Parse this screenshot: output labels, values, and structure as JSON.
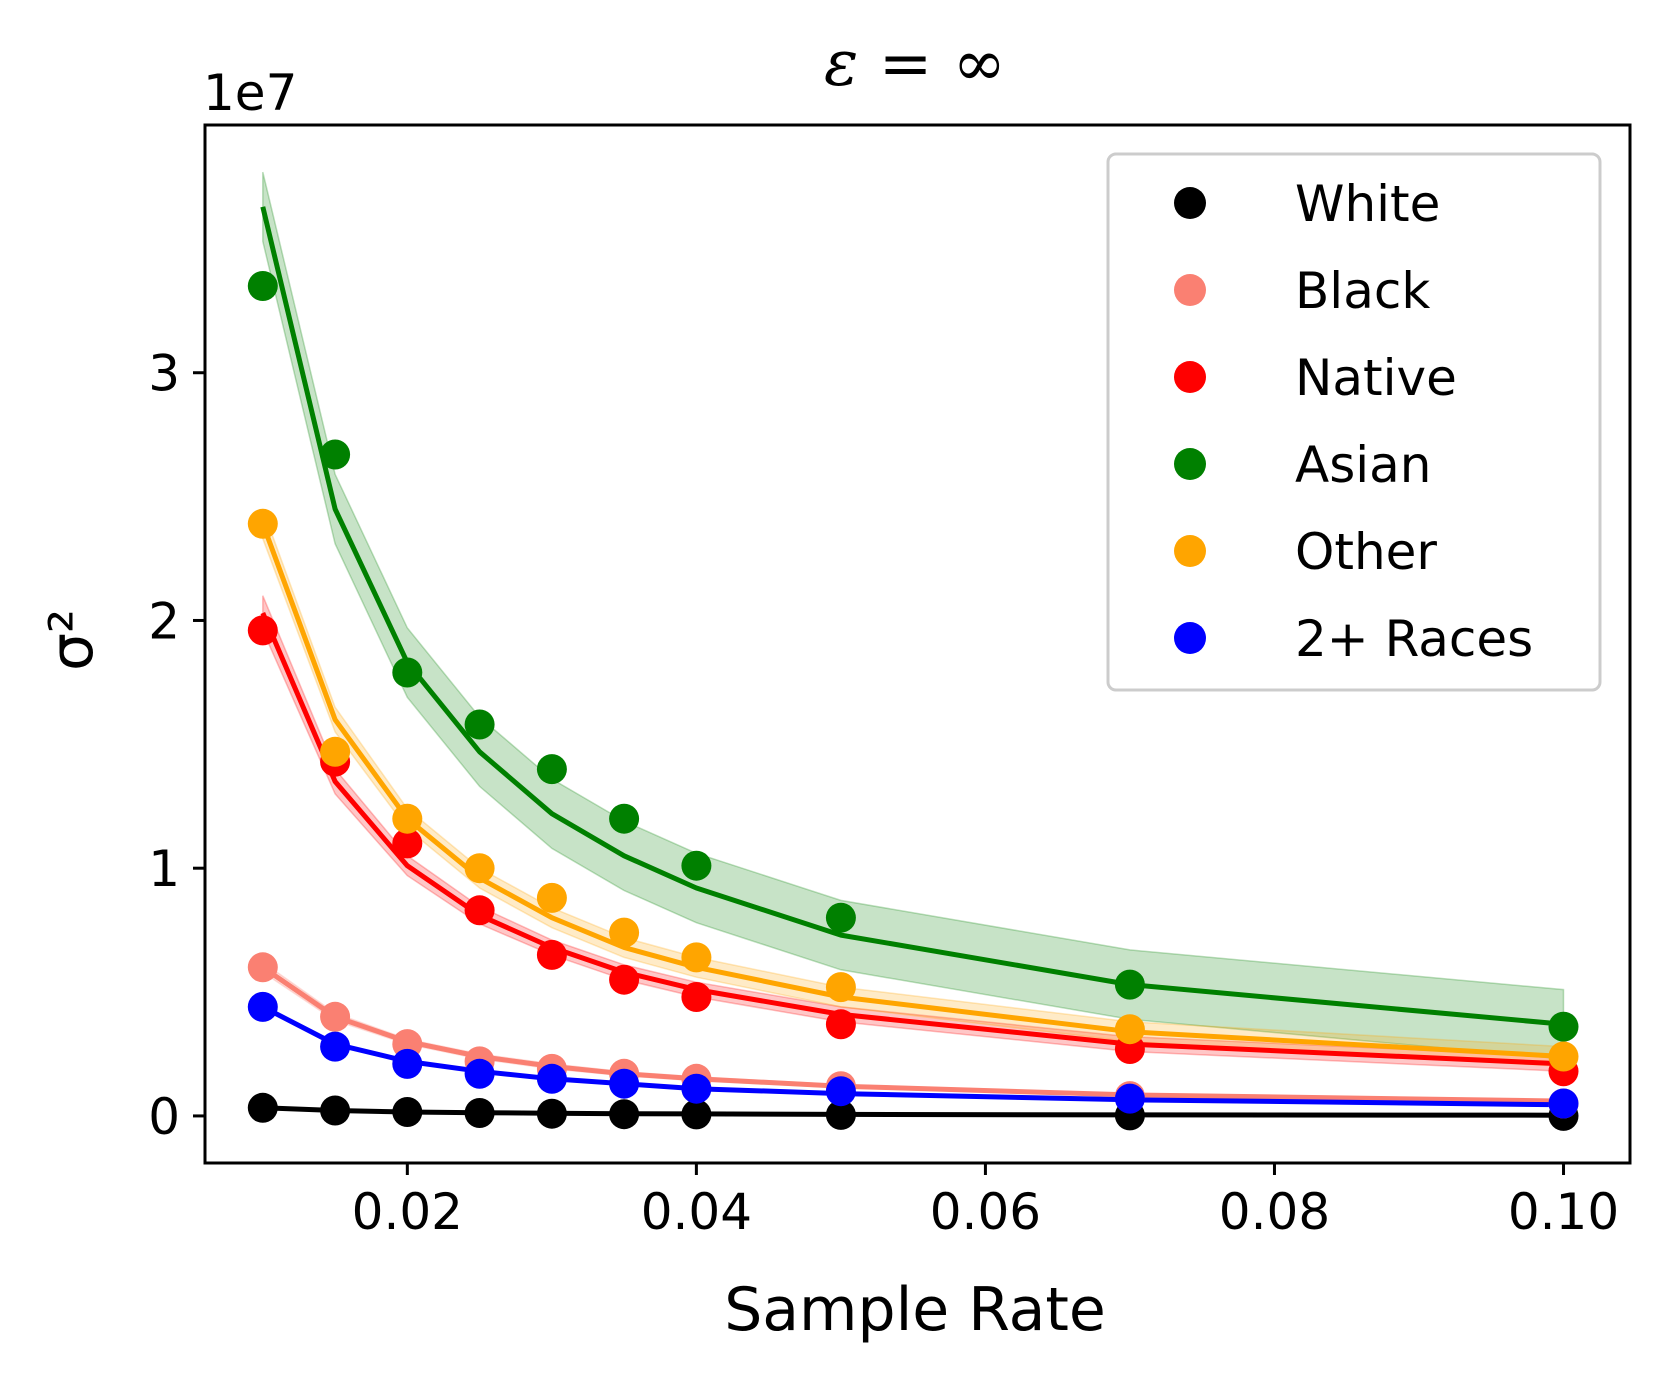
{
  "chart_data": {
    "type": "line",
    "title": "ε = ∞",
    "xlabel": "Sample Rate",
    "ylabel": "σ²",
    "y_offset_label": "1e7",
    "y_scale_factor": 10000000,
    "xlim": [
      0.006,
      0.1046
    ],
    "ylim": [
      -0.19,
      4.0
    ],
    "x_ticks": [
      0.02,
      0.04,
      0.06,
      0.08,
      0.1
    ],
    "x_tick_labels": [
      "0.02",
      "0.04",
      "0.06",
      "0.08",
      "0.10"
    ],
    "y_ticks": [
      0,
      1,
      2,
      3
    ],
    "y_tick_labels": [
      "0",
      "1",
      "2",
      "3"
    ],
    "grid": false,
    "legend_position": "top-right",
    "x": [
      0.01,
      0.015,
      0.02,
      0.025,
      0.03,
      0.035,
      0.04,
      0.05,
      0.07,
      0.1
    ],
    "series": [
      {
        "name": "White",
        "color": "#000000",
        "band": false,
        "points": [
          0.033,
          0.022,
          0.016,
          0.012,
          0.009,
          0.007,
          0.006,
          0.004,
          0.002,
          0.0
        ],
        "line": [
          0.033,
          0.022,
          0.016,
          0.013,
          0.011,
          0.009,
          0.008,
          0.006,
          0.004,
          0.003
        ]
      },
      {
        "name": "Black",
        "color": "#fa8072",
        "band": true,
        "points": [
          0.6,
          0.4,
          0.29,
          0.22,
          0.19,
          0.17,
          0.15,
          0.12,
          0.08,
          0.05
        ],
        "line": [
          0.6,
          0.4,
          0.3,
          0.24,
          0.2,
          0.17,
          0.15,
          0.12,
          0.085,
          0.06
        ],
        "band_width": [
          0.02,
          0.015,
          0.01,
          0.01,
          0.01,
          0.008,
          0.008,
          0.006,
          0.005,
          0.004
        ]
      },
      {
        "name": "Native",
        "color": "#ff0000",
        "band": true,
        "points": [
          1.96,
          1.43,
          1.1,
          0.83,
          0.65,
          0.55,
          0.48,
          0.37,
          0.27,
          0.18
        ],
        "line": [
          2.03,
          1.35,
          1.01,
          0.81,
          0.68,
          0.58,
          0.51,
          0.41,
          0.29,
          0.21
        ],
        "band_width": [
          0.07,
          0.05,
          0.04,
          0.035,
          0.03,
          0.03,
          0.03,
          0.03,
          0.03,
          0.03
        ]
      },
      {
        "name": "Asian",
        "color": "#008000",
        "band": true,
        "points": [
          3.35,
          2.67,
          1.79,
          1.58,
          1.4,
          1.2,
          1.01,
          0.8,
          0.53,
          0.36
        ],
        "line": [
          3.67,
          2.45,
          1.83,
          1.47,
          1.22,
          1.05,
          0.92,
          0.73,
          0.53,
          0.37
        ],
        "band_width": [
          0.14,
          0.14,
          0.14,
          0.14,
          0.14,
          0.14,
          0.14,
          0.14,
          0.14,
          0.14
        ]
      },
      {
        "name": "Other",
        "color": "#ffa500",
        "band": true,
        "points": [
          2.39,
          1.47,
          1.2,
          1.0,
          0.88,
          0.74,
          0.64,
          0.52,
          0.35,
          0.24
        ],
        "line": [
          2.39,
          1.6,
          1.2,
          0.96,
          0.8,
          0.68,
          0.6,
          0.48,
          0.34,
          0.24
        ],
        "band_width": [
          0.06,
          0.05,
          0.04,
          0.04,
          0.04,
          0.04,
          0.04,
          0.04,
          0.04,
          0.04
        ]
      },
      {
        "name": "2+ Races",
        "color": "#0000ff",
        "band": false,
        "points": [
          0.44,
          0.28,
          0.21,
          0.17,
          0.15,
          0.13,
          0.11,
          0.1,
          0.07,
          0.05
        ],
        "line": [
          0.44,
          0.29,
          0.22,
          0.18,
          0.15,
          0.13,
          0.11,
          0.09,
          0.065,
          0.045
        ]
      }
    ]
  }
}
